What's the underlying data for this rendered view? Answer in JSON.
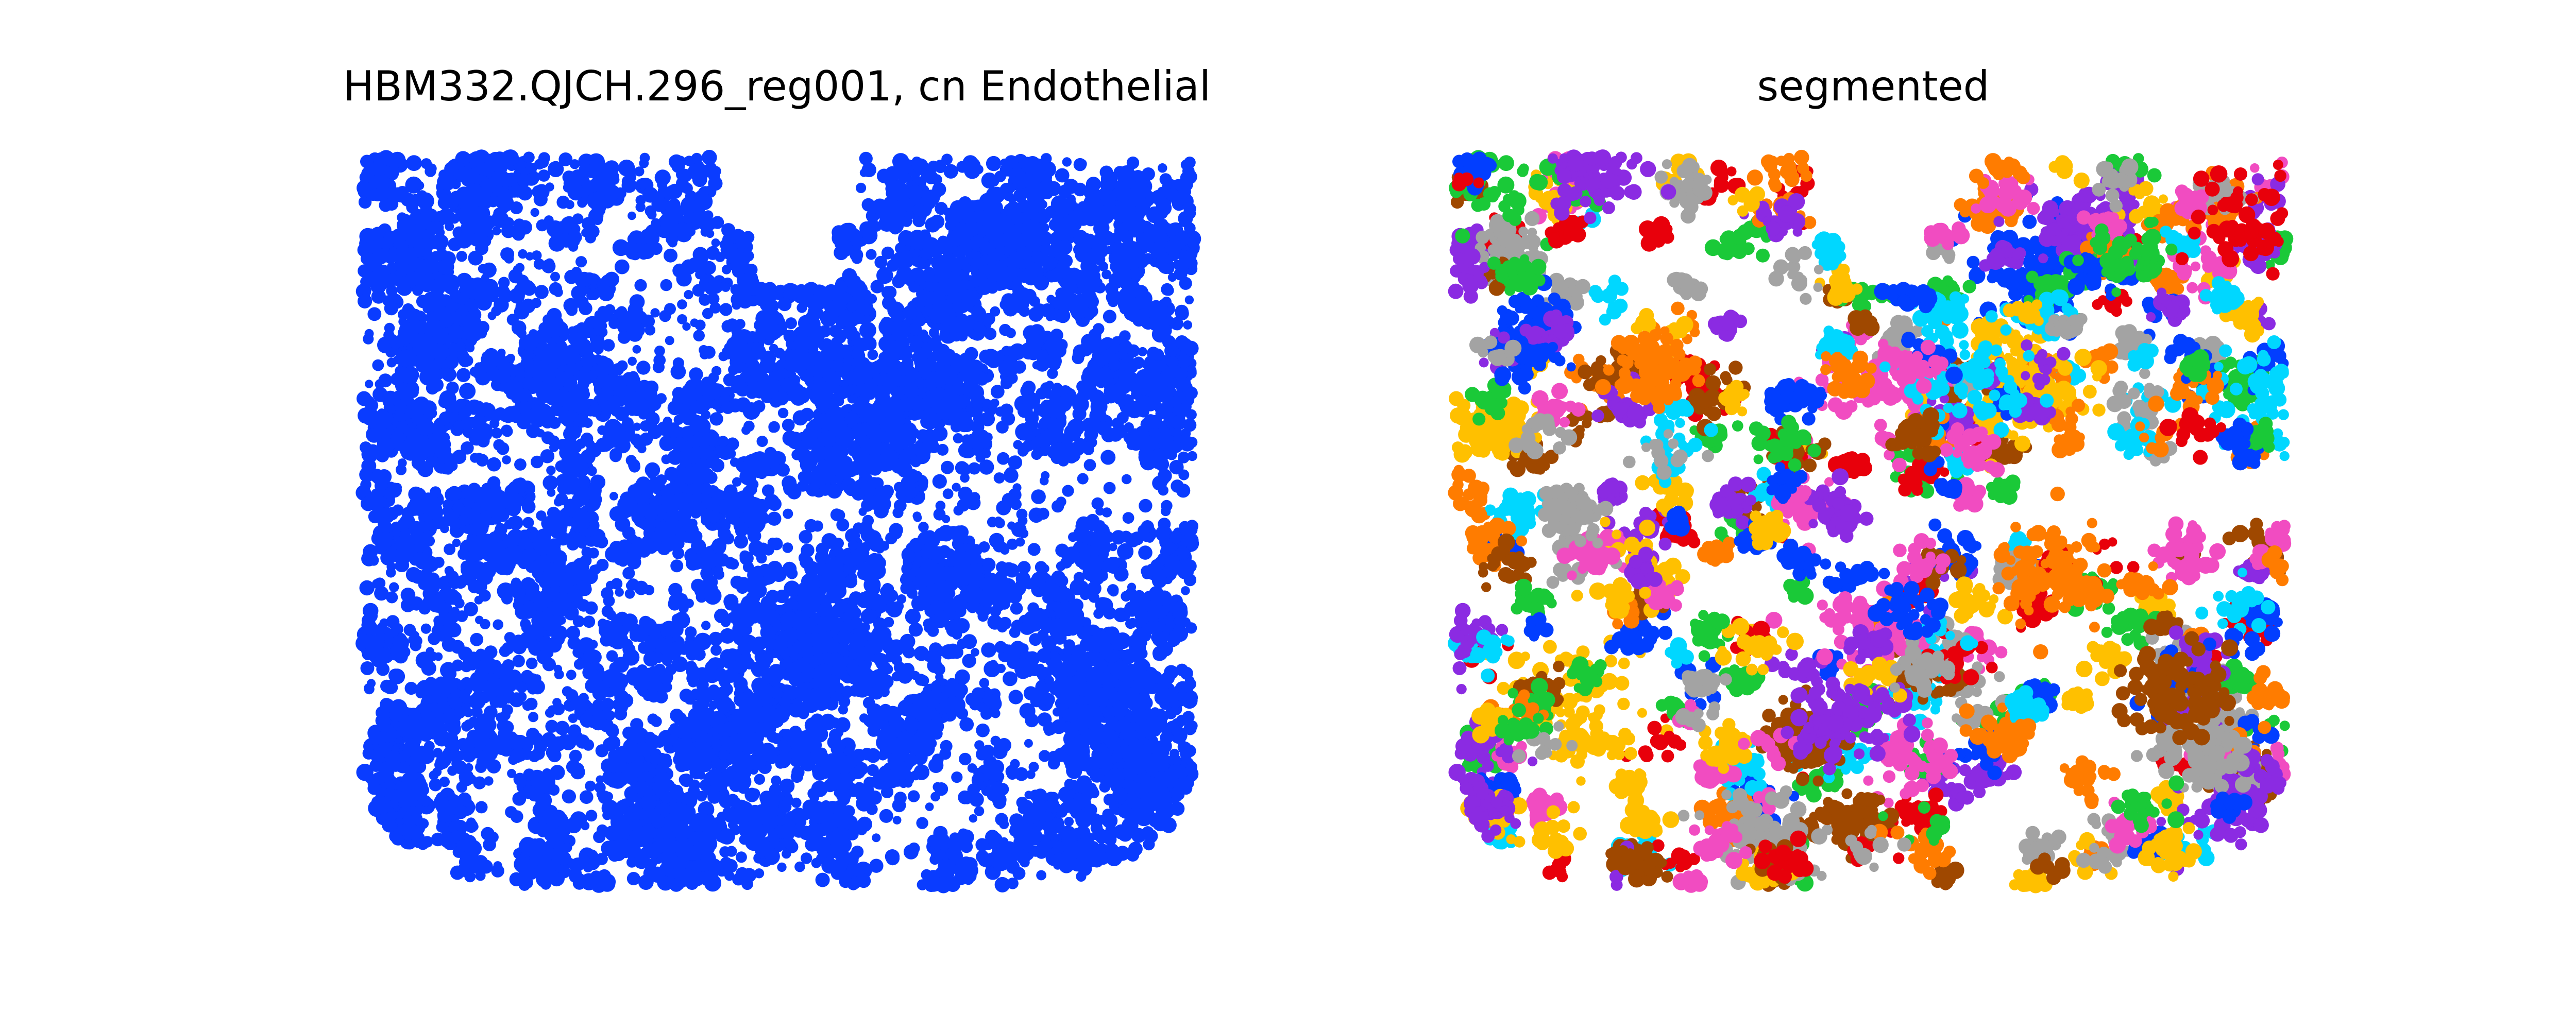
{
  "chart_data": [
    {
      "type": "scatter",
      "title": "HBM332.QJCH.296_reg001, cn Endothelial",
      "axes_visible": false,
      "grid": false,
      "legend": "none",
      "colors": [
        "#0a3cff"
      ],
      "density": "dense, fairly uniform speckled cell clusters with small empty gaps; top-center notch is empty",
      "point_count_estimate": 9000
    },
    {
      "type": "scatter",
      "title": "segmented",
      "axes_visible": false,
      "grid": false,
      "legend": "none",
      "colors": [
        "#ffc000",
        "#e8000b",
        "#1ac938",
        "#8b2be2",
        "#f14cc1",
        "#00d7ff",
        "#ff7c00",
        "#023eff",
        "#9f4800",
        "#a3a3a3"
      ],
      "density": "same cells as left panel, grouped into many small colored segments with white gaps between them",
      "segment_count_estimate": 420
    }
  ]
}
